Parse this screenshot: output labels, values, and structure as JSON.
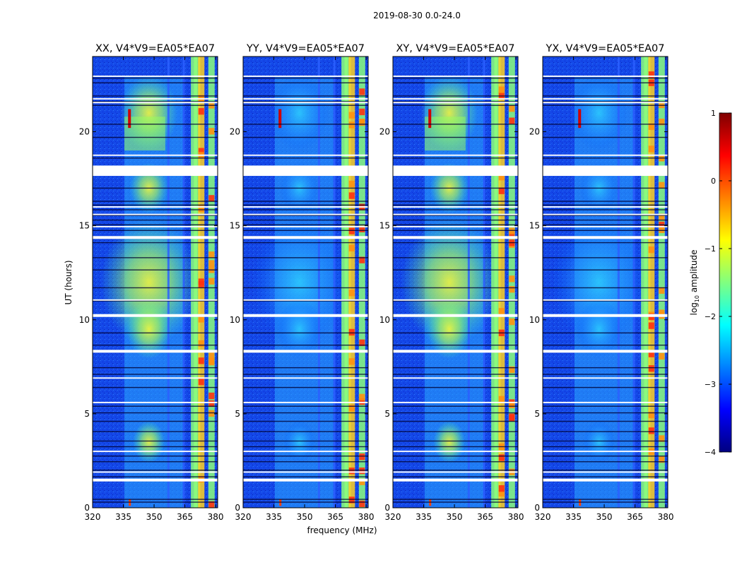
{
  "suptitle": "2019-08-30 0.0-24.0",
  "chart_data": {
    "type": "heatmap",
    "xlabel": "frequency (MHz)",
    "ylabel": "UT (hours)",
    "xlim": [
      320,
      381
    ],
    "ylim": [
      0,
      24
    ],
    "x_ticks": [
      320,
      335,
      350,
      365,
      380
    ],
    "y_ticks": [
      0,
      5,
      10,
      15,
      20
    ],
    "panels": [
      {
        "title": "XX, V4*V9=EA05*EA07",
        "bright_patch": "high"
      },
      {
        "title": "YY, V4*V9=EA05*EA07",
        "bright_patch": "low"
      },
      {
        "title": "XY, V4*V9=EA05*EA07",
        "bright_patch": "high"
      },
      {
        "title": "YX, V4*V9=EA05*EA07",
        "bright_patch": "low"
      }
    ],
    "colorbar": {
      "label": "log10 amplitude",
      "label_main": "log",
      "label_sub": "10",
      "label_tail": " amplitude",
      "range": [
        -4,
        1
      ],
      "ticks": [
        1,
        0,
        -1,
        -2,
        -3,
        -4
      ],
      "tick_labels": [
        "1",
        "0",
        "−1",
        "−2",
        "−3",
        "−4"
      ],
      "colormap": "jet",
      "colors": [
        "#000080",
        "#0000ff",
        "#0080ff",
        "#00ffff",
        "#80ff80",
        "#ffff00",
        "#ff8000",
        "#ff0000",
        "#800000"
      ]
    },
    "flagged_gaps_hours": [
      [
        17.65,
        18.2
      ],
      [
        10.15,
        10.3
      ],
      [
        14.3,
        14.45
      ],
      [
        8.25,
        8.4
      ],
      [
        1.4,
        1.55
      ]
    ],
    "time_band_edges_hours": [
      0.3,
      0.45,
      1.65,
      2.0,
      2.45,
      2.75,
      3.25,
      3.55,
      4.05,
      4.6,
      5.05,
      5.4,
      6.4,
      7.1,
      7.45,
      8.65,
      9.3,
      11.0,
      11.7,
      12.65,
      13.3,
      14.1,
      14.75,
      15.05,
      15.3,
      15.55,
      15.85,
      16.1,
      16.3,
      17.0,
      18.6,
      19.7,
      20.4,
      21.4,
      21.6,
      21.9,
      22.6,
      22.85
    ],
    "rfi_channels_mhz": [
      357,
      364.5,
      369.5,
      371,
      373,
      378
    ]
  }
}
